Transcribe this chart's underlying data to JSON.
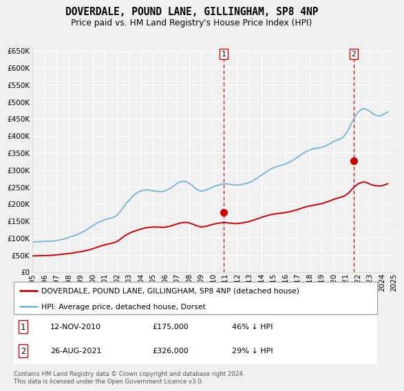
{
  "title": "DOVERDALE, POUND LANE, GILLINGHAM, SP8 4NP",
  "subtitle": "Price paid vs. HM Land Registry's House Price Index (HPI)",
  "ylim": [
    0,
    650000
  ],
  "yticks": [
    0,
    50000,
    100000,
    150000,
    200000,
    250000,
    300000,
    350000,
    400000,
    450000,
    500000,
    550000,
    600000,
    650000
  ],
  "ytick_labels": [
    "£0",
    "£50K",
    "£100K",
    "£150K",
    "£200K",
    "£250K",
    "£300K",
    "£350K",
    "£400K",
    "£450K",
    "£500K",
    "£550K",
    "£600K",
    "£650K"
  ],
  "hpi_color": "#7ab8d9",
  "price_color": "#cc0000",
  "background_color": "#f0f0f0",
  "grid_color": "#ffffff",
  "legend_label_price": "DOVERDALE, POUND LANE, GILLINGHAM, SP8 4NP (detached house)",
  "legend_label_hpi": "HPI: Average price, detached house, Dorset",
  "sale1_date": "12-NOV-2010",
  "sale1_price": "£175,000",
  "sale1_pct": "46% ↓ HPI",
  "sale2_date": "26-AUG-2021",
  "sale2_price": "£326,000",
  "sale2_pct": "29% ↓ HPI",
  "footnote": "Contains HM Land Registry data © Crown copyright and database right 2024.\nThis data is licensed under the Open Government Licence v3.0.",
  "hpi_years": [
    1995.0,
    1995.25,
    1995.5,
    1995.75,
    1996.0,
    1996.25,
    1996.5,
    1996.75,
    1997.0,
    1997.25,
    1997.5,
    1997.75,
    1998.0,
    1998.25,
    1998.5,
    1998.75,
    1999.0,
    1999.25,
    1999.5,
    1999.75,
    2000.0,
    2000.25,
    2000.5,
    2000.75,
    2001.0,
    2001.25,
    2001.5,
    2001.75,
    2002.0,
    2002.25,
    2002.5,
    2002.75,
    2003.0,
    2003.25,
    2003.5,
    2003.75,
    2004.0,
    2004.25,
    2004.5,
    2004.75,
    2005.0,
    2005.25,
    2005.5,
    2005.75,
    2006.0,
    2006.25,
    2006.5,
    2006.75,
    2007.0,
    2007.25,
    2007.5,
    2007.75,
    2008.0,
    2008.25,
    2008.5,
    2008.75,
    2009.0,
    2009.25,
    2009.5,
    2009.75,
    2010.0,
    2010.25,
    2010.5,
    2010.75,
    2011.0,
    2011.25,
    2011.5,
    2011.75,
    2012.0,
    2012.25,
    2012.5,
    2012.75,
    2013.0,
    2013.25,
    2013.5,
    2013.75,
    2014.0,
    2014.25,
    2014.5,
    2014.75,
    2015.0,
    2015.25,
    2015.5,
    2015.75,
    2016.0,
    2016.25,
    2016.5,
    2016.75,
    2017.0,
    2017.25,
    2017.5,
    2017.75,
    2018.0,
    2018.25,
    2018.5,
    2018.75,
    2019.0,
    2019.25,
    2019.5,
    2019.75,
    2020.0,
    2020.25,
    2020.5,
    2020.75,
    2021.0,
    2021.25,
    2021.5,
    2021.75,
    2022.0,
    2022.25,
    2022.5,
    2022.75,
    2023.0,
    2023.25,
    2023.5,
    2023.75,
    2024.0,
    2024.25,
    2024.5
  ],
  "hpi_values": [
    88000,
    88500,
    89000,
    89500,
    90000,
    90000,
    90000,
    90500,
    92000,
    94000,
    96000,
    98000,
    101000,
    104000,
    107000,
    110000,
    114000,
    119000,
    124000,
    130000,
    136000,
    141000,
    146000,
    150000,
    153000,
    156000,
    158000,
    161000,
    166000,
    176000,
    188000,
    200000,
    210000,
    220000,
    228000,
    234000,
    238000,
    240000,
    241000,
    240000,
    238000,
    237000,
    236000,
    236000,
    238000,
    242000,
    247000,
    253000,
    260000,
    264000,
    266000,
    265000,
    261000,
    254000,
    246000,
    240000,
    237000,
    239000,
    242000,
    246000,
    250000,
    253000,
    256000,
    258000,
    259000,
    258000,
    257000,
    256000,
    255000,
    256000,
    258000,
    260000,
    263000,
    267000,
    272000,
    278000,
    284000,
    290000,
    296000,
    302000,
    306000,
    309000,
    312000,
    314000,
    317000,
    321000,
    326000,
    331000,
    337000,
    343000,
    349000,
    354000,
    358000,
    361000,
    363000,
    364000,
    366000,
    369000,
    373000,
    378000,
    383000,
    387000,
    390000,
    395000,
    405000,
    420000,
    438000,
    455000,
    468000,
    476000,
    480000,
    477000,
    472000,
    465000,
    460000,
    458000,
    460000,
    465000,
    470000
  ],
  "price_years": [
    1995.0,
    1995.25,
    1995.5,
    1995.75,
    1996.0,
    1996.25,
    1996.5,
    1996.75,
    1997.0,
    1997.25,
    1997.5,
    1997.75,
    1998.0,
    1998.25,
    1998.5,
    1998.75,
    1999.0,
    1999.25,
    1999.5,
    1999.75,
    2000.0,
    2000.25,
    2000.5,
    2000.75,
    2001.0,
    2001.25,
    2001.5,
    2001.75,
    2002.0,
    2002.25,
    2002.5,
    2002.75,
    2003.0,
    2003.25,
    2003.5,
    2003.75,
    2004.0,
    2004.25,
    2004.5,
    2004.75,
    2005.0,
    2005.25,
    2005.5,
    2005.75,
    2006.0,
    2006.25,
    2006.5,
    2006.75,
    2007.0,
    2007.25,
    2007.5,
    2007.75,
    2008.0,
    2008.25,
    2008.5,
    2008.75,
    2009.0,
    2009.25,
    2009.5,
    2009.75,
    2010.0,
    2010.25,
    2010.5,
    2010.75,
    2011.0,
    2011.25,
    2011.5,
    2011.75,
    2012.0,
    2012.25,
    2012.5,
    2012.75,
    2013.0,
    2013.25,
    2013.5,
    2013.75,
    2014.0,
    2014.25,
    2014.5,
    2014.75,
    2015.0,
    2015.25,
    2015.5,
    2015.75,
    2016.0,
    2016.25,
    2016.5,
    2016.75,
    2017.0,
    2017.25,
    2017.5,
    2017.75,
    2018.0,
    2018.25,
    2018.5,
    2018.75,
    2019.0,
    2019.25,
    2019.5,
    2019.75,
    2020.0,
    2020.25,
    2020.5,
    2020.75,
    2021.0,
    2021.25,
    2021.5,
    2021.75,
    2022.0,
    2022.25,
    2022.5,
    2022.75,
    2023.0,
    2023.25,
    2023.5,
    2023.75,
    2024.0,
    2024.25,
    2024.5
  ],
  "price_values": [
    47000,
    47200,
    47500,
    47800,
    48000,
    48300,
    48700,
    49200,
    50000,
    51000,
    52000,
    53000,
    54000,
    55000,
    56500,
    58000,
    59500,
    61000,
    63000,
    65500,
    68000,
    71000,
    74000,
    77000,
    79500,
    81500,
    83500,
    86000,
    89000,
    95000,
    102000,
    108000,
    113000,
    117000,
    120000,
    123000,
    126000,
    128000,
    130000,
    131000,
    132000,
    132000,
    131500,
    131000,
    131500,
    133000,
    135000,
    138000,
    141000,
    143500,
    145000,
    145500,
    144000,
    141000,
    137500,
    134000,
    132000,
    133000,
    135000,
    137500,
    140000,
    142000,
    143500,
    144500,
    145000,
    144000,
    143000,
    142000,
    142000,
    143000,
    144500,
    146000,
    148000,
    151000,
    154000,
    157000,
    160000,
    163000,
    165500,
    168000,
    169500,
    171000,
    172000,
    173000,
    174500,
    176000,
    178000,
    180500,
    183000,
    186000,
    189000,
    191500,
    193500,
    195500,
    197000,
    198500,
    200500,
    203000,
    206000,
    209500,
    213000,
    216000,
    218500,
    221000,
    225000,
    232000,
    242000,
    251000,
    258000,
    262000,
    264000,
    262000,
    258000,
    255000,
    253000,
    252000,
    253000,
    256000,
    259000
  ],
  "sale1_x": 2010.87,
  "sale1_y": 175000,
  "sale2_x": 2021.65,
  "sale2_y": 326000,
  "xmin": 1995,
  "xmax": 2025,
  "xticks": [
    1995,
    1996,
    1997,
    1998,
    1999,
    2000,
    2001,
    2002,
    2003,
    2004,
    2005,
    2006,
    2007,
    2008,
    2009,
    2010,
    2011,
    2012,
    2013,
    2014,
    2015,
    2016,
    2017,
    2018,
    2019,
    2020,
    2021,
    2022,
    2023,
    2024,
    2025
  ]
}
